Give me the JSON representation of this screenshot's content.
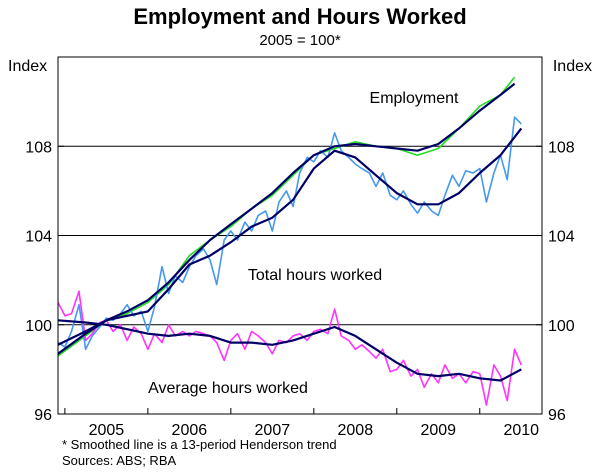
{
  "chart_data": {
    "type": "line",
    "title": "Employment and Hours Worked",
    "subtitle": "2005 = 100*",
    "ylabel_left": "Index",
    "ylabel_right": "Index",
    "x_unit": "year",
    "xlim": [
      2004.917,
      2010.75
    ],
    "ylim": [
      96,
      112
    ],
    "yticks": [
      96,
      100,
      104,
      108
    ],
    "xtick_labels": [
      "2005",
      "2006",
      "2007",
      "2008",
      "2009",
      "2010"
    ],
    "xtick_positions": [
      2005.5,
      2006.5,
      2007.5,
      2008.5,
      2009.5,
      2010.5
    ],
    "grid": "horizontal",
    "legend": "inline labels",
    "footnote": "*  Smoothed line is a 13-period Henderson trend",
    "source": "Sources: ABS; RBA",
    "colors": {
      "employment": "#22dd22",
      "total_hours": "#4499ee",
      "average_hours": "#ff33ff",
      "trend": "#000066",
      "frame": "#000000",
      "grid": "#000000"
    },
    "series": [
      {
        "name": "Employment",
        "kind": "original",
        "color": "#22dd22",
        "points": [
          [
            2004.917,
            98.6
          ],
          [
            2005.25,
            99.5
          ],
          [
            2005.5,
            100.2
          ],
          [
            2005.75,
            100.5
          ],
          [
            2006.0,
            101.0
          ],
          [
            2006.25,
            101.8
          ],
          [
            2006.5,
            103.1
          ],
          [
            2006.75,
            103.8
          ],
          [
            2007.0,
            104.4
          ],
          [
            2007.25,
            105.2
          ],
          [
            2007.5,
            105.8
          ],
          [
            2007.75,
            106.7
          ],
          [
            2008.0,
            107.6
          ],
          [
            2008.25,
            107.9
          ],
          [
            2008.5,
            108.2
          ],
          [
            2008.75,
            108.0
          ],
          [
            2009.0,
            107.9
          ],
          [
            2009.25,
            107.6
          ],
          [
            2009.5,
            107.9
          ],
          [
            2009.75,
            108.8
          ],
          [
            2010.0,
            109.8
          ],
          [
            2010.25,
            110.3
          ],
          [
            2010.42,
            111.1
          ]
        ]
      },
      {
        "name": "Employment",
        "kind": "trend",
        "color": "#000066",
        "points": [
          [
            2004.917,
            98.7
          ],
          [
            2005.25,
            99.6
          ],
          [
            2005.5,
            100.2
          ],
          [
            2005.75,
            100.6
          ],
          [
            2006.0,
            101.1
          ],
          [
            2006.25,
            101.9
          ],
          [
            2006.5,
            102.9
          ],
          [
            2006.75,
            103.8
          ],
          [
            2007.0,
            104.5
          ],
          [
            2007.25,
            105.2
          ],
          [
            2007.5,
            105.9
          ],
          [
            2007.75,
            106.8
          ],
          [
            2008.0,
            107.6
          ],
          [
            2008.25,
            108.0
          ],
          [
            2008.5,
            108.1
          ],
          [
            2008.75,
            108.0
          ],
          [
            2009.0,
            107.9
          ],
          [
            2009.25,
            107.8
          ],
          [
            2009.5,
            108.1
          ],
          [
            2009.75,
            108.8
          ],
          [
            2010.0,
            109.6
          ],
          [
            2010.25,
            110.3
          ],
          [
            2010.42,
            110.8
          ]
        ]
      },
      {
        "name": "Total hours worked",
        "kind": "original",
        "color": "#4499ee",
        "points": [
          [
            2004.917,
            99.2
          ],
          [
            2005.0,
            99.0
          ],
          [
            2005.08,
            99.7
          ],
          [
            2005.17,
            100.9
          ],
          [
            2005.25,
            98.9
          ],
          [
            2005.33,
            99.5
          ],
          [
            2005.42,
            99.9
          ],
          [
            2005.5,
            100.3
          ],
          [
            2005.58,
            100.2
          ],
          [
            2005.67,
            100.5
          ],
          [
            2005.75,
            100.9
          ],
          [
            2005.83,
            100.4
          ],
          [
            2005.92,
            100.6
          ],
          [
            2006.0,
            99.7
          ],
          [
            2006.08,
            100.8
          ],
          [
            2006.17,
            102.6
          ],
          [
            2006.25,
            101.4
          ],
          [
            2006.33,
            102.2
          ],
          [
            2006.42,
            101.9
          ],
          [
            2006.5,
            102.6
          ],
          [
            2006.58,
            103.1
          ],
          [
            2006.67,
            103.4
          ],
          [
            2006.75,
            102.9
          ],
          [
            2006.83,
            101.8
          ],
          [
            2006.92,
            103.8
          ],
          [
            2007.0,
            104.2
          ],
          [
            2007.08,
            103.8
          ],
          [
            2007.17,
            104.6
          ],
          [
            2007.25,
            104.2
          ],
          [
            2007.33,
            104.9
          ],
          [
            2007.42,
            105.1
          ],
          [
            2007.5,
            104.2
          ],
          [
            2007.58,
            105.5
          ],
          [
            2007.67,
            106.0
          ],
          [
            2007.75,
            105.3
          ],
          [
            2007.83,
            106.8
          ],
          [
            2007.92,
            107.5
          ],
          [
            2008.0,
            107.3
          ],
          [
            2008.08,
            107.8
          ],
          [
            2008.17,
            107.5
          ],
          [
            2008.25,
            108.6
          ],
          [
            2008.33,
            107.8
          ],
          [
            2008.42,
            107.5
          ],
          [
            2008.5,
            107.2
          ],
          [
            2008.58,
            107.0
          ],
          [
            2008.67,
            106.8
          ],
          [
            2008.75,
            106.2
          ],
          [
            2008.83,
            106.8
          ],
          [
            2008.92,
            105.8
          ],
          [
            2009.0,
            105.6
          ],
          [
            2009.08,
            106.0
          ],
          [
            2009.17,
            105.4
          ],
          [
            2009.25,
            105.0
          ],
          [
            2009.33,
            105.5
          ],
          [
            2009.42,
            105.1
          ],
          [
            2009.5,
            104.9
          ],
          [
            2009.58,
            105.8
          ],
          [
            2009.67,
            106.7
          ],
          [
            2009.75,
            106.2
          ],
          [
            2009.83,
            106.9
          ],
          [
            2009.92,
            106.8
          ],
          [
            2010.0,
            107.0
          ],
          [
            2010.08,
            105.5
          ],
          [
            2010.17,
            106.8
          ],
          [
            2010.25,
            107.6
          ],
          [
            2010.33,
            106.5
          ],
          [
            2010.42,
            109.3
          ],
          [
            2010.5,
            109.0
          ]
        ]
      },
      {
        "name": "Total hours worked",
        "kind": "trend",
        "color": "#000066",
        "points": [
          [
            2004.917,
            99.1
          ],
          [
            2005.25,
            99.7
          ],
          [
            2005.5,
            100.2
          ],
          [
            2005.75,
            100.4
          ],
          [
            2006.0,
            100.6
          ],
          [
            2006.25,
            101.6
          ],
          [
            2006.5,
            102.7
          ],
          [
            2006.75,
            103.1
          ],
          [
            2007.0,
            103.7
          ],
          [
            2007.25,
            104.4
          ],
          [
            2007.5,
            104.8
          ],
          [
            2007.75,
            105.6
          ],
          [
            2008.0,
            107.0
          ],
          [
            2008.25,
            107.8
          ],
          [
            2008.5,
            107.5
          ],
          [
            2008.75,
            106.7
          ],
          [
            2009.0,
            105.9
          ],
          [
            2009.25,
            105.4
          ],
          [
            2009.5,
            105.4
          ],
          [
            2009.75,
            105.9
          ],
          [
            2010.0,
            106.8
          ],
          [
            2010.25,
            107.6
          ],
          [
            2010.5,
            108.8
          ]
        ]
      },
      {
        "name": "Average hours worked",
        "kind": "original",
        "color": "#ff33ff",
        "points": [
          [
            2004.917,
            101.0
          ],
          [
            2005.0,
            100.4
          ],
          [
            2005.08,
            100.5
          ],
          [
            2005.17,
            101.5
          ],
          [
            2005.25,
            99.3
          ],
          [
            2005.33,
            99.6
          ],
          [
            2005.42,
            100.1
          ],
          [
            2005.5,
            100.2
          ],
          [
            2005.58,
            99.7
          ],
          [
            2005.67,
            100.0
          ],
          [
            2005.75,
            99.3
          ],
          [
            2005.83,
            99.9
          ],
          [
            2005.92,
            99.6
          ],
          [
            2006.0,
            98.9
          ],
          [
            2006.08,
            99.6
          ],
          [
            2006.17,
            99.2
          ],
          [
            2006.25,
            100.0
          ],
          [
            2006.33,
            99.5
          ],
          [
            2006.42,
            99.7
          ],
          [
            2006.5,
            99.5
          ],
          [
            2006.58,
            99.7
          ],
          [
            2006.67,
            99.6
          ],
          [
            2006.75,
            99.5
          ],
          [
            2006.83,
            99.2
          ],
          [
            2006.92,
            98.4
          ],
          [
            2007.0,
            99.3
          ],
          [
            2007.08,
            99.6
          ],
          [
            2007.17,
            98.9
          ],
          [
            2007.25,
            99.7
          ],
          [
            2007.33,
            99.5
          ],
          [
            2007.42,
            99.2
          ],
          [
            2007.5,
            98.7
          ],
          [
            2007.58,
            99.3
          ],
          [
            2007.67,
            99.2
          ],
          [
            2007.75,
            99.5
          ],
          [
            2007.83,
            99.6
          ],
          [
            2007.92,
            99.3
          ],
          [
            2008.0,
            99.7
          ],
          [
            2008.08,
            99.8
          ],
          [
            2008.17,
            99.6
          ],
          [
            2008.25,
            100.7
          ],
          [
            2008.33,
            99.5
          ],
          [
            2008.42,
            99.3
          ],
          [
            2008.5,
            98.9
          ],
          [
            2008.58,
            99.1
          ],
          [
            2008.67,
            98.8
          ],
          [
            2008.75,
            98.5
          ],
          [
            2008.83,
            98.9
          ],
          [
            2008.92,
            97.9
          ],
          [
            2009.0,
            98.0
          ],
          [
            2009.08,
            98.4
          ],
          [
            2009.17,
            97.7
          ],
          [
            2009.25,
            98.0
          ],
          [
            2009.33,
            97.2
          ],
          [
            2009.42,
            97.8
          ],
          [
            2009.5,
            97.4
          ],
          [
            2009.58,
            98.2
          ],
          [
            2009.67,
            97.6
          ],
          [
            2009.75,
            97.8
          ],
          [
            2009.83,
            97.4
          ],
          [
            2009.92,
            97.9
          ],
          [
            2010.0,
            97.8
          ],
          [
            2010.08,
            96.4
          ],
          [
            2010.17,
            98.2
          ],
          [
            2010.25,
            97.7
          ],
          [
            2010.33,
            96.6
          ],
          [
            2010.42,
            98.9
          ],
          [
            2010.5,
            98.2
          ]
        ]
      },
      {
        "name": "Average hours worked",
        "kind": "trend",
        "color": "#000066",
        "points": [
          [
            2004.917,
            100.2
          ],
          [
            2005.25,
            100.1
          ],
          [
            2005.5,
            100.0
          ],
          [
            2005.75,
            99.8
          ],
          [
            2006.0,
            99.6
          ],
          [
            2006.25,
            99.5
          ],
          [
            2006.5,
            99.6
          ],
          [
            2006.75,
            99.5
          ],
          [
            2007.0,
            99.2
          ],
          [
            2007.25,
            99.2
          ],
          [
            2007.5,
            99.1
          ],
          [
            2007.75,
            99.3
          ],
          [
            2008.0,
            99.6
          ],
          [
            2008.25,
            99.9
          ],
          [
            2008.5,
            99.5
          ],
          [
            2008.75,
            98.9
          ],
          [
            2009.0,
            98.3
          ],
          [
            2009.25,
            97.8
          ],
          [
            2009.5,
            97.7
          ],
          [
            2009.75,
            97.8
          ],
          [
            2010.0,
            97.6
          ],
          [
            2010.25,
            97.5
          ],
          [
            2010.5,
            98.0
          ]
        ]
      }
    ]
  },
  "labels": {
    "employment": "Employment",
    "total_hours": "Total hours worked",
    "average_hours": "Average hours worked"
  }
}
